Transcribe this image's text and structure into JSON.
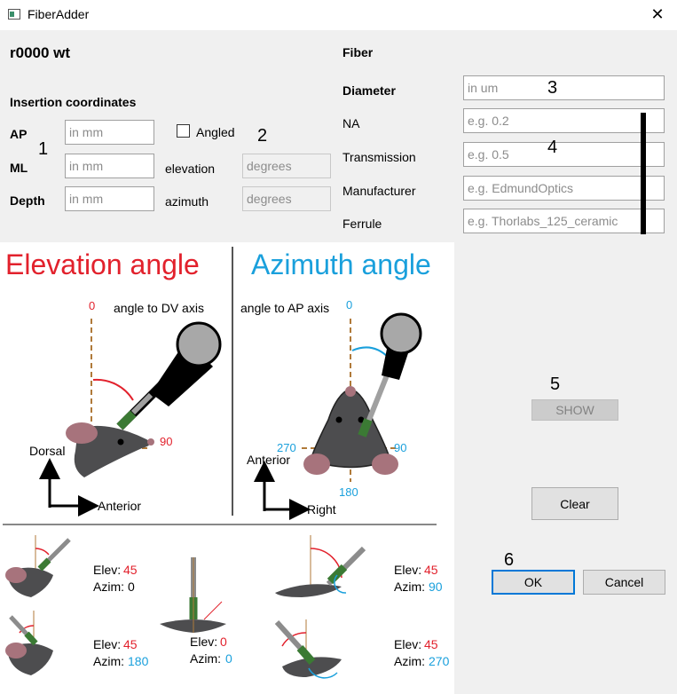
{
  "window": {
    "title": "FiberAdder"
  },
  "subject": {
    "label": "r0000  wt"
  },
  "insertion": {
    "heading": "Insertion coordinates",
    "ap_label": "AP",
    "ml_label": "ML",
    "depth_label": "Depth",
    "ap_placeholder": "in mm",
    "ml_placeholder": "in mm",
    "depth_placeholder": "in mm",
    "angled_label": "Angled",
    "elevation_label": "elevation",
    "azimuth_label": "azimuth",
    "elevation_placeholder": "degrees",
    "azimuth_placeholder": "degrees"
  },
  "fiber": {
    "heading": "Fiber",
    "diameter_label": "Diameter",
    "na_label": "NA",
    "transmission_label": "Transmission",
    "manufacturer_label": "Manufacturer",
    "ferrule_label": "Ferrule",
    "diameter_placeholder": "in um",
    "na_placeholder": "e.g. 0.2",
    "transmission_placeholder": "e.g. 0.5",
    "manufacturer_placeholder": "e.g. EdmundOptics",
    "ferrule_placeholder": "e.g. Thorlabs_125_ceramic"
  },
  "markers": [
    "1",
    "2",
    "3",
    "4",
    "5",
    "6"
  ],
  "buttons": {
    "show": "SHOW",
    "clear": "Clear",
    "ok": "OK",
    "cancel": "Cancel"
  },
  "figure": {
    "elevation_title": "Elevation angle",
    "azimuth_title": "Azimuth angle",
    "elev_axis_note": "angle to DV axis",
    "azim_axis_note": "angle to AP axis",
    "elev_zero": "0",
    "elev_ninety": "90",
    "azim_zero": "0",
    "azim_90": "90",
    "azim_180": "180",
    "azim_270": "270",
    "dorsal": "Dorsal",
    "anterior": "Anterior",
    "anterior2": "Anterior",
    "right": "Right",
    "examples": [
      {
        "elev_label": "Elev:",
        "elev": "45",
        "azim_label": "Azim:",
        "azim": "0"
      },
      {
        "elev_label": "Elev:",
        "elev": "45",
        "azim_label": "Azim:",
        "azim": "180"
      },
      {
        "elev_label": "Elev:",
        "elev": "0",
        "azim_label": "Azim:",
        "azim": "0"
      },
      {
        "elev_label": "Elev:",
        "elev": "45",
        "azim_label": "Azim:",
        "azim": "90"
      },
      {
        "elev_label": "Elev:",
        "elev": "45",
        "azim_label": "Azim:",
        "azim": "270"
      }
    ]
  },
  "colors": {
    "elevation_red": "#e2212c",
    "azimuth_blue": "#1aa0dc",
    "brown_dash": "#b07a3a",
    "mouse_gray": "#4d4d4f",
    "ear_pink": "#a7737c",
    "fiber_green": "#3b7a34"
  }
}
